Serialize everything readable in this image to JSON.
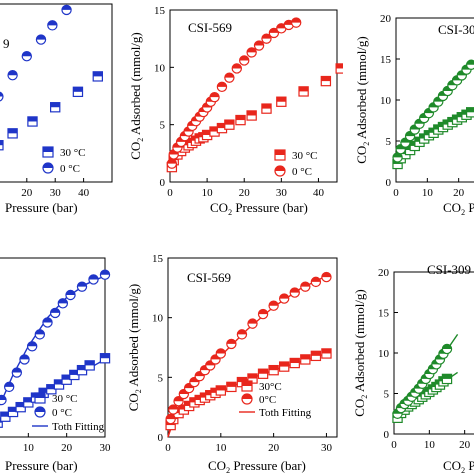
{
  "chart_data": [
    {
      "id": "top-left",
      "type": "scatter",
      "title": "9",
      "xlabel": "Pressure (bar)",
      "ylabel": "",
      "xlim": [
        0,
        50
      ],
      "ylim": [
        0,
        15
      ],
      "xticks": [
        "20",
        "30",
        "40"
      ],
      "yticks": [],
      "legend_position": "bottom-right",
      "color": "#1f35c8",
      "series": [
        {
          "name": "30 °C",
          "marker": "square-half",
          "x": [
            1,
            3,
            6,
            10,
            15,
            22,
            30,
            38,
            45
          ],
          "y": [
            0.5,
            1.2,
            2.2,
            3.1,
            4.1,
            5.1,
            6.3,
            7.6,
            8.9
          ]
        },
        {
          "name": "0 °C",
          "marker": "circle-half",
          "x": [
            1,
            3,
            6,
            10,
            15,
            20,
            25,
            29,
            34
          ],
          "y": [
            1.6,
            3.4,
            5.4,
            7.2,
            9.0,
            10.6,
            12.0,
            13.2,
            14.5
          ]
        }
      ]
    },
    {
      "id": "top-middle",
      "type": "scatter",
      "title": "CSI-569",
      "xlabel": "CO2 Pressure (bar)",
      "ylabel": "CO2 Adsorbed (mmol/g)",
      "xlim": [
        0,
        45
      ],
      "ylim": [
        0,
        15
      ],
      "xticks": [
        "0",
        "10",
        "20",
        "30",
        "40"
      ],
      "yticks": [
        "0",
        "5",
        "10",
        "15"
      ],
      "legend_position": "bottom-right",
      "color": "#e8261c",
      "series": [
        {
          "name": "30 °C",
          "marker": "square-half",
          "x": [
            0.5,
            1,
            2,
            3,
            4,
            5,
            6,
            7,
            8,
            9,
            10,
            12,
            14,
            16,
            19,
            22,
            26,
            30,
            36,
            42,
            46
          ],
          "y": [
            1.3,
            1.9,
            2.4,
            2.7,
            3.0,
            3.2,
            3.4,
            3.6,
            3.8,
            3.9,
            4.1,
            4.4,
            4.7,
            5.0,
            5.4,
            5.8,
            6.4,
            7.0,
            7.9,
            8.8,
            9.9
          ]
        },
        {
          "name": "0 °C",
          "marker": "circle-half",
          "x": [
            0.5,
            1,
            2,
            3,
            4,
            5,
            6,
            7,
            8,
            9,
            10,
            11,
            12,
            14,
            16,
            18,
            20,
            22,
            24,
            26,
            28,
            30,
            32,
            34
          ],
          "y": [
            1.6,
            2.4,
            3.0,
            3.5,
            4.0,
            4.4,
            4.9,
            5.3,
            5.7,
            6.1,
            6.5,
            7.0,
            7.4,
            8.3,
            9.1,
            9.9,
            10.6,
            11.3,
            11.9,
            12.5,
            13.0,
            13.4,
            13.7,
            13.9
          ]
        }
      ]
    },
    {
      "id": "top-right",
      "type": "scatter",
      "title": "CSI-30",
      "xlabel": "CO2 P",
      "ylabel": "CO2 Adsorbed (mmol/g)",
      "xlim": [
        0,
        30
      ],
      "ylim": [
        0,
        20
      ],
      "xticks": [
        "0",
        "10",
        "20"
      ],
      "yticks": [
        "0",
        "5",
        "10",
        "15",
        "20"
      ],
      "legend_position": "",
      "color": "#1f8a2a",
      "series": [
        {
          "name": "",
          "marker": "square-half",
          "x": [
            0.5,
            1.5,
            3,
            4.5,
            6,
            7.5,
            9,
            10.5,
            12,
            13.5,
            15,
            16.5,
            18,
            19.5,
            21,
            22.5,
            24
          ],
          "y": [
            2.2,
            2.9,
            3.4,
            3.9,
            4.4,
            4.9,
            5.3,
            5.7,
            6.0,
            6.4,
            6.7,
            7.0,
            7.3,
            7.6,
            7.9,
            8.2,
            8.5
          ]
        },
        {
          "name": "",
          "marker": "circle-half",
          "x": [
            0.5,
            1.5,
            3,
            4.5,
            6,
            7.5,
            9,
            10.5,
            12,
            13.5,
            15,
            16.5,
            18,
            19.5,
            21,
            22.5,
            24
          ],
          "y": [
            3.0,
            4.0,
            4.8,
            5.6,
            6.4,
            7.1,
            7.8,
            8.4,
            9.1,
            9.8,
            10.5,
            11.1,
            11.8,
            12.4,
            13.0,
            13.7,
            14.3
          ]
        }
      ]
    },
    {
      "id": "bottom-left",
      "type": "scatter",
      "title": "",
      "xlabel": "Pressure (bar)",
      "ylabel": "",
      "xlim": [
        0,
        30
      ],
      "ylim": [
        0,
        15
      ],
      "xticks": [
        "10",
        "20",
        "30"
      ],
      "yticks": [],
      "legend_position": "bottom-right",
      "color": "#1f35c8",
      "fit_name": "Toth Fitting",
      "series": [
        {
          "name": "30 °C",
          "marker": "square-half",
          "x": [
            2,
            4,
            6,
            8,
            10,
            12,
            14,
            16,
            18,
            20,
            22,
            24,
            26,
            30
          ],
          "y": [
            1.2,
            1.7,
            2.1,
            2.5,
            2.9,
            3.3,
            3.7,
            4.0,
            4.4,
            4.8,
            5.2,
            5.6,
            6.0,
            6.6
          ]
        },
        {
          "name": "0 °C",
          "marker": "circle-half",
          "x": [
            1,
            3,
            5,
            7,
            9,
            11,
            13,
            15,
            17,
            19,
            21,
            24,
            27,
            30
          ],
          "y": [
            2.1,
            3.1,
            4.2,
            5.4,
            6.5,
            7.6,
            8.6,
            9.6,
            10.4,
            11.2,
            11.9,
            12.6,
            13.2,
            13.6
          ]
        }
      ],
      "fit": [
        {
          "x": [
            0,
            3,
            6,
            10,
            15,
            20,
            25,
            30
          ],
          "y": [
            0.8,
            1.5,
            2.1,
            2.9,
            3.8,
            4.7,
            5.6,
            6.5
          ]
        },
        {
          "x": [
            0,
            3,
            6,
            10,
            15,
            20,
            25,
            30
          ],
          "y": [
            1.0,
            3.0,
            5.2,
            7.6,
            10.0,
            11.7,
            12.8,
            13.5
          ]
        }
      ]
    },
    {
      "id": "bottom-middle",
      "type": "scatter",
      "title": "CSI-569",
      "xlabel": "CO2 Pressure (bar)",
      "ylabel": "CO2 Adsorbed (mmol/g)",
      "xlim": [
        0,
        32
      ],
      "ylim": [
        0,
        15
      ],
      "xticks": [
        "0",
        "10",
        "20",
        "30"
      ],
      "yticks": [
        "0",
        "5",
        "10",
        "15"
      ],
      "legend_position": "bottom-right",
      "color": "#e8261c",
      "fit_name": "Toth Fitting",
      "series": [
        {
          "name": "30°C",
          "marker": "square-half",
          "x": [
            0.5,
            1,
            2,
            3,
            4,
            5,
            6,
            7,
            8,
            9,
            10,
            12,
            14,
            16,
            18,
            20,
            22,
            24,
            26,
            28,
            30
          ],
          "y": [
            1.0,
            1.5,
            2.0,
            2.3,
            2.6,
            2.9,
            3.1,
            3.3,
            3.5,
            3.7,
            3.9,
            4.2,
            4.6,
            4.9,
            5.3,
            5.6,
            5.9,
            6.2,
            6.5,
            6.8,
            7.0
          ]
        },
        {
          "name": "0°C",
          "marker": "circle-half",
          "x": [
            0.5,
            1,
            2,
            3,
            4,
            5,
            6,
            7,
            8,
            9,
            10,
            12,
            14,
            16,
            18,
            20,
            22,
            24,
            26,
            28,
            30
          ],
          "y": [
            1.5,
            2.3,
            3.0,
            3.6,
            4.1,
            4.6,
            5.1,
            5.6,
            6.0,
            6.5,
            7.0,
            7.8,
            8.6,
            9.5,
            10.3,
            11.0,
            11.6,
            12.1,
            12.6,
            13.0,
            13.4
          ]
        }
      ],
      "fit": [
        {
          "x": [
            0,
            1,
            3,
            6,
            10,
            15,
            20,
            25,
            30
          ],
          "y": [
            0,
            1.3,
            2.3,
            3.0,
            3.8,
            4.8,
            5.6,
            6.3,
            7.0
          ]
        },
        {
          "x": [
            0,
            1,
            3,
            6,
            10,
            15,
            20,
            25,
            30
          ],
          "y": [
            0,
            1.8,
            3.3,
            4.9,
            6.8,
            9.0,
            10.9,
            12.4,
            13.5
          ]
        }
      ]
    },
    {
      "id": "bottom-right",
      "type": "scatter",
      "title": "CSI-309",
      "xlabel": "CO2 Pre",
      "ylabel": "CO2 Adsorbed (mmol/g)",
      "xlim": [
        0,
        30
      ],
      "ylim": [
        0,
        20
      ],
      "xticks": [
        "0",
        "10",
        "20"
      ],
      "yticks": [
        "0",
        "5",
        "10",
        "15",
        "20"
      ],
      "legend_position": "",
      "color": "#1f8a2a",
      "series": [
        {
          "name": "",
          "marker": "square-half",
          "x": [
            1,
            2,
            3,
            4,
            5,
            6,
            7,
            8,
            9,
            10,
            11,
            12,
            13,
            14,
            15
          ],
          "y": [
            2.0,
            2.6,
            3.0,
            3.4,
            3.7,
            4.0,
            4.3,
            4.6,
            4.9,
            5.2,
            5.5,
            5.8,
            6.1,
            6.5,
            6.8
          ]
        },
        {
          "name": "",
          "marker": "circle-half",
          "x": [
            1,
            2,
            3,
            4,
            5,
            6,
            7,
            8,
            9,
            10,
            11,
            12,
            13,
            14,
            15
          ],
          "y": [
            2.5,
            3.2,
            3.7,
            4.1,
            4.6,
            5.1,
            5.6,
            6.2,
            6.8,
            7.4,
            8.0,
            8.6,
            9.2,
            9.9,
            10.5
          ]
        }
      ],
      "fit": [
        {
          "x": [
            0,
            3,
            6,
            9,
            12,
            15,
            18
          ],
          "y": [
            1.5,
            2.9,
            3.9,
            4.8,
            5.7,
            6.7,
            7.6
          ]
        },
        {
          "x": [
            0,
            3,
            6,
            9,
            12,
            15,
            18
          ],
          "y": [
            1.7,
            3.5,
            5.0,
            6.7,
            8.5,
            10.4,
            12.3
          ]
        }
      ]
    }
  ]
}
